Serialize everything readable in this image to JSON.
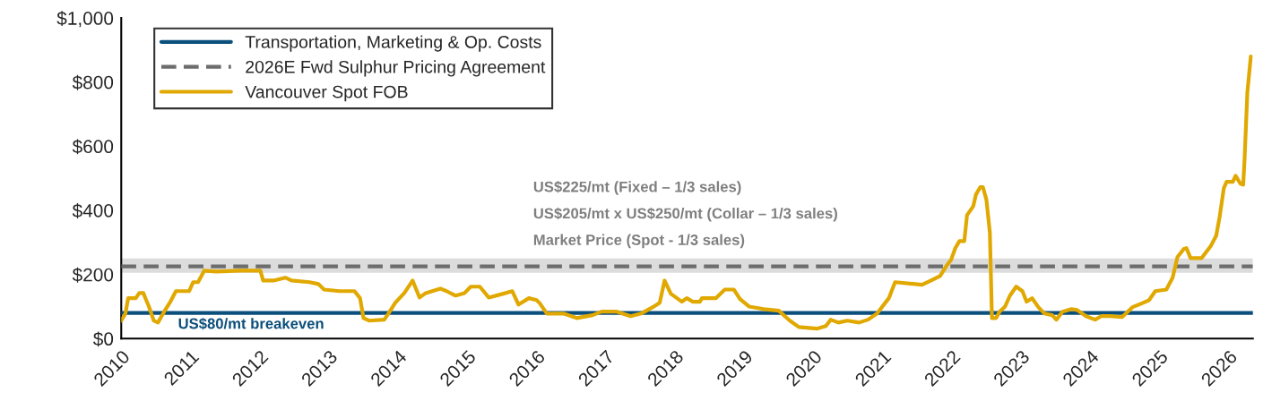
{
  "chart_data": {
    "type": "line",
    "xlim": [
      2010,
      2026.35
    ],
    "xticks": [
      2010,
      2011,
      2012,
      2013,
      2014,
      2015,
      2016,
      2017,
      2018,
      2019,
      2020,
      2021,
      2022,
      2023,
      2024,
      2025,
      2026
    ],
    "ylim": [
      0,
      1000
    ],
    "yticks": [
      {
        "value": 0,
        "label": "$0"
      },
      {
        "value": 200,
        "label": "$200"
      },
      {
        "value": 400,
        "label": "$400"
      },
      {
        "value": 600,
        "label": "$600"
      },
      {
        "value": 800,
        "label": "$800"
      },
      {
        "value": 1000,
        "label": "$1,000"
      }
    ],
    "grid": false,
    "legend": "top left",
    "bands": [
      {
        "axis": "y",
        "from": 205,
        "to": 250,
        "color": "#dcdcdc"
      }
    ],
    "series": [
      {
        "name": "Transportation, Marketing & Op. Costs",
        "color": "#0b4f7c",
        "line_style": "solid",
        "x": [
          2010,
          2026.35
        ],
        "values": [
          80,
          80
        ]
      },
      {
        "name": "2026E Fwd Sulphur Pricing Agreement",
        "color": "#6d6d6d",
        "line_style": "dashed",
        "x": [
          2010,
          2026.35
        ],
        "values": [
          225,
          225
        ]
      },
      {
        "name": "Vancouver Spot FOB",
        "color": "#e0a800",
        "line_style": "solid",
        "x": [
          2010.0,
          2010.06,
          2010.1,
          2010.21,
          2010.26,
          2010.32,
          2010.36,
          2010.4,
          2010.47,
          2010.53,
          2010.62,
          2010.71,
          2010.79,
          2010.98,
          2011.04,
          2011.11,
          2011.2,
          2011.37,
          2011.72,
          2012.01,
          2012.05,
          2012.2,
          2012.37,
          2012.46,
          2012.72,
          2012.85,
          2012.93,
          2013.15,
          2013.37,
          2013.45,
          2013.5,
          2013.58,
          2013.8,
          2013.86,
          2013.96,
          2014.09,
          2014.21,
          2014.31,
          2014.4,
          2014.61,
          2014.7,
          2014.83,
          2014.96,
          2015.05,
          2015.18,
          2015.31,
          2015.52,
          2015.65,
          2015.74,
          2015.89,
          2016.0,
          2016.04,
          2016.15,
          2016.39,
          2016.58,
          2016.81,
          2016.94,
          2017.16,
          2017.36,
          2017.51,
          2017.68,
          2017.78,
          2017.85,
          2017.94,
          2018.1,
          2018.17,
          2018.26,
          2018.36,
          2018.39,
          2018.59,
          2018.72,
          2018.85,
          2018.94,
          2019.07,
          2019.28,
          2019.5,
          2019.66,
          2019.79,
          2020.05,
          2020.18,
          2020.25,
          2020.36,
          2020.49,
          2020.66,
          2020.79,
          2020.92,
          2021.09,
          2021.18,
          2021.57,
          2021.7,
          2021.83,
          2021.92,
          2021.99,
          2022.05,
          2022.11,
          2022.18,
          2022.22,
          2022.31,
          2022.35,
          2022.41,
          2022.45,
          2022.5,
          2022.55,
          2022.58,
          2022.64,
          2022.69,
          2022.77,
          2022.84,
          2022.93,
          2023.02,
          2023.08,
          2023.16,
          2023.25,
          2023.34,
          2023.45,
          2023.51,
          2023.6,
          2023.73,
          2023.81,
          2023.94,
          2024.07,
          2024.16,
          2024.29,
          2024.46,
          2024.61,
          2024.77,
          2024.85,
          2024.94,
          2025.1,
          2025.19,
          2025.26,
          2025.35,
          2025.39,
          2025.45,
          2025.61,
          2025.74,
          2025.82,
          2025.87,
          2025.93,
          2025.97,
          2026.06,
          2026.1,
          2026.17,
          2026.21,
          2026.23,
          2026.27,
          2026.32
        ],
        "values": [
          56,
          78,
          126,
          126,
          142,
          142,
          120,
          100,
          56,
          50,
          84,
          115,
          148,
          148,
          176,
          176,
          212,
          209,
          212,
          212,
          181,
          181,
          190,
          181,
          176,
          170,
          153,
          148,
          148,
          126,
          64,
          56,
          59,
          78,
          112,
          142,
          181,
          128,
          142,
          156,
          148,
          134,
          142,
          162,
          162,
          128,
          140,
          148,
          106,
          126,
          120,
          112,
          78,
          78,
          64,
          73,
          84,
          84,
          70,
          78,
          98,
          112,
          181,
          140,
          115,
          126,
          115,
          115,
          126,
          126,
          153,
          153,
          123,
          100,
          92,
          87,
          56,
          36,
          31,
          39,
          59,
          50,
          56,
          50,
          59,
          78,
          126,
          176,
          168,
          181,
          195,
          226,
          246,
          282,
          304,
          304,
          385,
          413,
          450,
          472,
          472,
          433,
          330,
          64,
          64,
          84,
          100,
          134,
          162,
          148,
          115,
          126,
          98,
          78,
          73,
          59,
          84,
          92,
          89,
          70,
          59,
          70,
          70,
          67,
          98,
          112,
          120,
          148,
          153,
          190,
          254,
          279,
          282,
          251,
          251,
          288,
          321,
          380,
          469,
          489,
          489,
          508,
          483,
          480,
          561,
          768,
          880
        ]
      }
    ],
    "annotations": [
      {
        "text": "US$80/mt breakeven",
        "x": 2010.82,
        "y": 80
      },
      "US$225/mt (Fixed – 1/3 sales)",
      "US$205/mt x US$250/mt (Collar – 1/3 sales)",
      "Market Price (Spot - 1/3 sales)"
    ]
  }
}
